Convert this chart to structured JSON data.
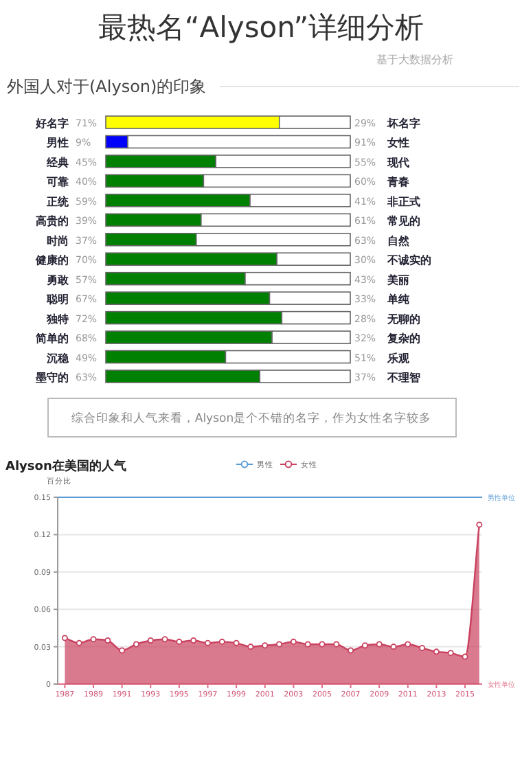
{
  "chart_data": [
    {
      "type": "bar",
      "orientation": "horizontal",
      "stacked": true,
      "title": "最热名“Alyson”详细分析",
      "subtitle": "基于大数据分析",
      "xlabel": "外国人对于(Alyson)的印象",
      "categories": [
        "好名字",
        "男性",
        "经典",
        "可靠",
        "正统",
        "高贵的",
        "时尚",
        "健康的",
        "勇敢",
        "聪明",
        "独特",
        "简单的",
        "沉稳",
        "墨守的"
      ],
      "y2_categories": [
        "坏名字",
        "女性",
        "现代",
        "青春",
        "非正式",
        "常见的",
        "自然",
        "不诚实的",
        "美丽",
        "单纯",
        "无聊的",
        "复杂的",
        "乐观",
        "不理智"
      ],
      "xlim": [
        0,
        100
      ],
      "series": [
        {
          "colors": [
            "#ffff00",
            "#0000ff",
            "#008000",
            "#008000",
            "#008000",
            "#008000",
            "#008000",
            "#008000",
            "#008000",
            "#008000",
            "#008000",
            "#008000",
            "#008000",
            "#008000"
          ],
          "values": [
            71,
            9,
            45,
            40,
            59,
            39,
            37,
            70,
            57,
            67,
            72,
            68,
            49,
            63
          ],
          "value_labels": [
            "71%",
            "9%",
            "45%",
            "40%",
            "59%",
            "39%",
            "37%",
            "70%",
            "57%",
            "67%",
            "72%",
            "68%",
            "49%",
            "63%"
          ]
        },
        {
          "color": "#ffffff",
          "values": [
            29,
            91,
            55,
            60,
            41,
            61,
            63,
            30,
            43,
            33,
            28,
            32,
            51,
            37
          ],
          "value_labels": [
            "29%",
            "91%",
            "55%",
            "60%",
            "41%",
            "61%",
            "63%",
            "30%",
            "43%",
            "33%",
            "28%",
            "32%",
            "51%",
            "37%"
          ]
        }
      ],
      "annotations": [
        "综合印象和人气来看，Alyson是个不错的名字，作为女性名字较多"
      ]
    },
    {
      "type": "area",
      "title": "Alyson在美国的人气",
      "ylabel": "百分比",
      "x": [
        1987,
        1988,
        1989,
        1990,
        1991,
        1992,
        1993,
        1994,
        1995,
        1996,
        1997,
        1998,
        1999,
        2000,
        2001,
        2002,
        2003,
        2004,
        2005,
        2006,
        2007,
        2008,
        2009,
        2010,
        2011,
        2012,
        2013,
        2014,
        2015,
        2016
      ],
      "xlim": [
        1986.5,
        2016.2
      ],
      "xticks": [
        1987,
        1989,
        1991,
        1993,
        1995,
        1997,
        1999,
        2001,
        2003,
        2005,
        2007,
        2009,
        2011,
        2013,
        2015
      ],
      "ylim": [
        0,
        0.15
      ],
      "yticks": [
        0,
        0.03,
        0.06,
        0.09,
        0.12,
        0.15
      ],
      "grid": "y",
      "legend": "top",
      "marker": "circle",
      "series": [
        {
          "name": "男性",
          "color": "#5b9bd5",
          "values": [
            null,
            null,
            null,
            null,
            null,
            null,
            null,
            null,
            null,
            null,
            null,
            null,
            null,
            null,
            null,
            null,
            null,
            null,
            null,
            null,
            null,
            null,
            null,
            null,
            null,
            null,
            null,
            null,
            null,
            null
          ]
        },
        {
          "name": "女性",
          "color": "#c9415f",
          "values": [
            0.037,
            0.033,
            0.036,
            0.035,
            0.027,
            0.032,
            0.035,
            0.036,
            0.034,
            0.035,
            0.033,
            0.034,
            0.033,
            0.03,
            0.031,
            0.032,
            0.034,
            0.032,
            0.032,
            0.032,
            0.027,
            0.031,
            0.032,
            0.03,
            0.032,
            0.029,
            0.026,
            0.025,
            0.022,
            0.128
          ]
        }
      ],
      "xlabel": "女性单位",
      "x2label": "男性单位"
    }
  ]
}
